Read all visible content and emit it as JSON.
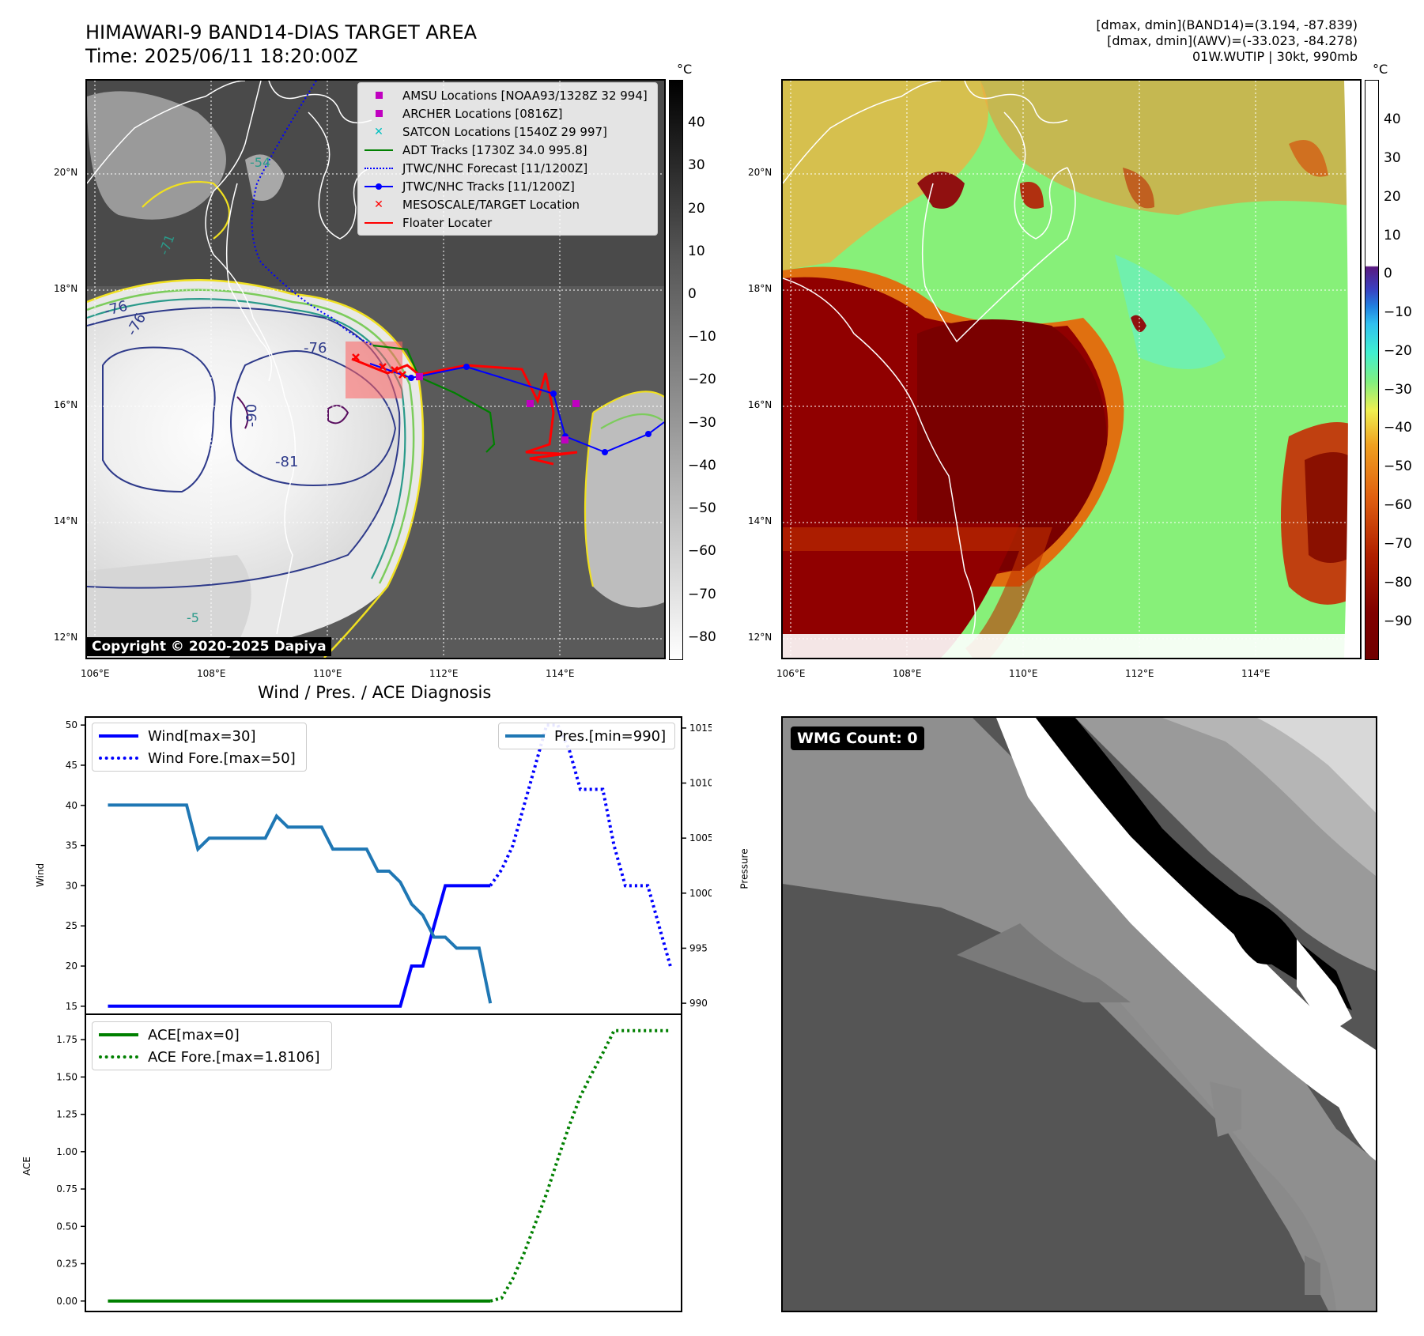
{
  "header": {
    "title_line1": "HIMAWARI-9 BAND14-DIAS TARGET AREA",
    "title_line2": "Time: 2025/06/11 18:20:00Z",
    "info_line1": "[dmax, dmin](BAND14)=(3.194, -87.839)",
    "info_line2": "[dmax, dmin](AWV)=(-33.023, -84.278)",
    "info_line3": "01W.WUTIP | 30kt, 990mb"
  },
  "map": {
    "lat_labels": [
      "20°N",
      "18°N",
      "16°N",
      "14°N",
      "12°N"
    ],
    "lon_labels": [
      "106°E",
      "108°E",
      "110°E",
      "112°E",
      "114°E"
    ],
    "contour_labels": [
      "-76",
      "-76",
      "-76",
      "-81",
      "-90",
      "-54",
      "-71",
      "-5"
    ],
    "copyright": "Copyright © 2020-2025 Dapiya",
    "legend": [
      {
        "label": "AMSU Locations [NOAA93/1328Z 32 994]",
        "color": "#c000c0",
        "marker": "square"
      },
      {
        "label": "ARCHER Locations [0816Z]",
        "color": "#c000c0",
        "marker": "square"
      },
      {
        "label": "SATCON Locations [1540Z 29 997]",
        "color": "#00c0c0",
        "marker": "x"
      },
      {
        "label": "ADT Tracks [1730Z 34.0 995.8]",
        "color": "#008000",
        "marker": "line"
      },
      {
        "label": "JTWC/NHC Forecast [11/1200Z]",
        "color": "#0000ff",
        "marker": "dotted"
      },
      {
        "label": "JTWC/NHC Tracks [11/1200Z]",
        "color": "#0000ff",
        "marker": "line-dot"
      },
      {
        "label": "MESOSCALE/TARGET Location",
        "color": "#ff0000",
        "marker": "x"
      },
      {
        "label": "Floater Locater",
        "color": "#ff0000",
        "marker": "line"
      }
    ]
  },
  "colorbar_left": {
    "unit": "°C",
    "ticks": [
      "40",
      "30",
      "20",
      "10",
      "0",
      "−10",
      "−20",
      "−30",
      "−40",
      "−50",
      "−60",
      "−70",
      "−80"
    ]
  },
  "colorbar_right": {
    "unit": "°C",
    "ticks": [
      "40",
      "30",
      "20",
      "10",
      "0",
      "−10",
      "−20",
      "−30",
      "−40",
      "−50",
      "−60",
      "−70",
      "−80",
      "−90"
    ]
  },
  "diag": {
    "title": "Wind / Pres. / ACE Diagnosis",
    "wind_ylabel": "Wind",
    "pres_ylabel": "Pressure",
    "ace_ylabel": "ACE",
    "wind_ticks": [
      "50",
      "45",
      "40",
      "35",
      "30",
      "25",
      "20",
      "15"
    ],
    "pres_ticks": [
      "1015",
      "1010",
      "1005",
      "1000",
      "995",
      "990"
    ],
    "ace_ticks": [
      "1.75",
      "1.50",
      "1.25",
      "1.00",
      "0.75",
      "0.50",
      "0.25",
      "0.00"
    ],
    "legend_wind": "Wind[max=30]",
    "legend_wind_fore": "Wind Fore.[max=50]",
    "legend_pres": "Pres.[min=990]",
    "legend_ace": "ACE[max=0]",
    "legend_ace_fore": "ACE Fore.[max=1.8106]"
  },
  "wmg": {
    "label": "WMG Count: 0"
  },
  "chart_data": [
    {
      "type": "line",
      "title": "Wind / Pres. / ACE Diagnosis",
      "ylabel": "Wind",
      "ylim": [
        14,
        51
      ],
      "series": [
        {
          "name": "Wind[max=30]",
          "color": "#0000ff",
          "style": "solid",
          "x": [
            0,
            1,
            2,
            3,
            4,
            5,
            6,
            7,
            8,
            9,
            10,
            11,
            12,
            13,
            14,
            15,
            16,
            17,
            18,
            19,
            20,
            21,
            22,
            23,
            24,
            25,
            26,
            27,
            28,
            29,
            30,
            31,
            32,
            33,
            34
          ],
          "y": [
            15,
            15,
            15,
            15,
            15,
            15,
            15,
            15,
            15,
            15,
            15,
            15,
            15,
            15,
            15,
            15,
            15,
            15,
            15,
            15,
            15,
            15,
            15,
            15,
            15,
            15,
            15,
            20,
            20,
            25,
            30,
            30,
            30,
            30,
            30
          ]
        },
        {
          "name": "Wind Fore.[max=50]",
          "color": "#0000ff",
          "style": "dotted",
          "x": [
            34,
            35,
            36,
            37,
            38,
            39,
            40,
            41,
            42,
            43,
            44,
            45,
            46,
            47,
            48,
            49,
            50
          ],
          "y": [
            30,
            32,
            35,
            40,
            45,
            50,
            50,
            47,
            42,
            42,
            42,
            35,
            30,
            30,
            30,
            25,
            20
          ]
        }
      ]
    },
    {
      "type": "line",
      "ylabel": "Pressure",
      "ylim": [
        989,
        1016
      ],
      "series": [
        {
          "name": "Pres.[min=990]",
          "color": "#1f77b4",
          "style": "solid",
          "x": [
            0,
            1,
            2,
            3,
            4,
            5,
            6,
            7,
            8,
            9,
            10,
            11,
            12,
            13,
            14,
            15,
            16,
            17,
            18,
            19,
            20,
            21,
            22,
            23,
            24,
            25,
            26,
            27,
            28,
            29,
            30,
            31,
            32,
            33,
            34
          ],
          "y": [
            1008,
            1008,
            1008,
            1008,
            1008,
            1008,
            1008,
            1008,
            1004,
            1005,
            1005,
            1005,
            1005,
            1005,
            1005,
            1007,
            1006,
            1006,
            1006,
            1006,
            1004,
            1004,
            1004,
            1004,
            1002,
            1002,
            1001,
            999,
            998,
            996,
            996,
            995,
            995,
            995,
            990
          ]
        }
      ]
    },
    {
      "type": "line",
      "ylabel": "ACE",
      "ylim": [
        -0.07,
        1.92
      ],
      "series": [
        {
          "name": "ACE[max=0]",
          "color": "#008000",
          "style": "solid",
          "x": [
            0,
            34
          ],
          "y": [
            0,
            0
          ]
        },
        {
          "name": "ACE Fore.[max=1.8106]",
          "color": "#008000",
          "style": "dotted",
          "x": [
            34,
            35,
            36,
            37,
            38,
            39,
            40,
            41,
            42,
            43,
            44,
            45,
            46,
            47,
            48,
            49,
            50
          ],
          "y": [
            0,
            0.02,
            0.15,
            0.32,
            0.52,
            0.72,
            0.95,
            1.17,
            1.37,
            1.52,
            1.66,
            1.81,
            1.81,
            1.81,
            1.81,
            1.81,
            1.81
          ]
        }
      ]
    }
  ]
}
